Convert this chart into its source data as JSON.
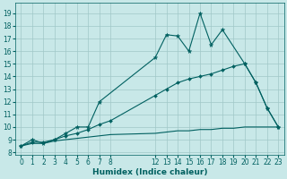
{
  "xlabel": "Humidex (Indice chaleur)",
  "bg_color": "#c8e8e8",
  "grid_color": "#a0c8c8",
  "line_color": "#006060",
  "xlim": [
    -0.5,
    23.5
  ],
  "ylim": [
    7.8,
    19.8
  ],
  "xticks": [
    0,
    1,
    2,
    3,
    4,
    5,
    6,
    7,
    8,
    12,
    13,
    14,
    15,
    16,
    17,
    18,
    19,
    20,
    21,
    22,
    23
  ],
  "yticks": [
    8,
    9,
    10,
    11,
    12,
    13,
    14,
    15,
    16,
    17,
    18,
    19
  ],
  "line1_x": [
    0,
    1,
    2,
    3,
    4,
    5,
    6,
    7,
    12,
    13,
    14,
    15,
    16,
    17,
    18,
    20,
    21,
    22,
    23
  ],
  "line1_y": [
    8.5,
    9.0,
    8.7,
    9.0,
    9.5,
    10.0,
    10.0,
    12.0,
    15.5,
    17.3,
    17.2,
    16.0,
    19.0,
    16.5,
    17.7,
    15.0,
    13.5,
    11.5,
    10.0
  ],
  "line2_x": [
    0,
    1,
    2,
    3,
    4,
    5,
    6,
    7,
    8,
    12,
    13,
    14,
    15,
    16,
    17,
    18,
    19,
    20,
    21,
    22,
    23
  ],
  "line2_y": [
    8.5,
    8.8,
    8.8,
    9.0,
    9.3,
    9.5,
    9.8,
    10.2,
    10.5,
    12.5,
    13.0,
    13.5,
    13.8,
    14.0,
    14.2,
    14.5,
    14.8,
    15.0,
    13.5,
    11.5,
    10.0
  ],
  "line3_x": [
    0,
    1,
    2,
    3,
    4,
    5,
    6,
    7,
    8,
    12,
    13,
    14,
    15,
    16,
    17,
    18,
    19,
    20,
    21,
    22,
    23
  ],
  "line3_y": [
    8.5,
    8.7,
    8.7,
    8.9,
    9.0,
    9.1,
    9.2,
    9.3,
    9.4,
    9.5,
    9.6,
    9.7,
    9.7,
    9.8,
    9.8,
    9.9,
    9.9,
    10.0,
    10.0,
    10.0,
    10.0
  ],
  "figsize": [
    3.2,
    2.0
  ],
  "dpi": 100,
  "tick_labelsize": 5.5,
  "xlabel_fontsize": 6.5
}
